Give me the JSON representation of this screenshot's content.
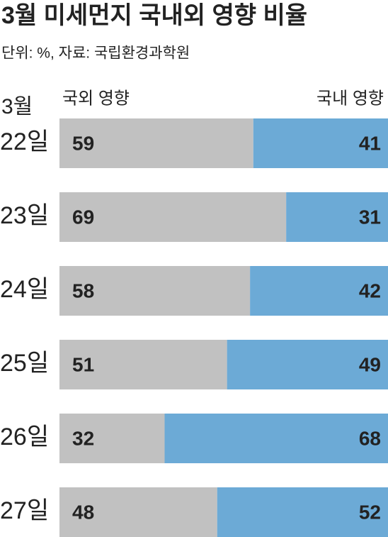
{
  "chart_data": {
    "type": "stacked-bar-horizontal",
    "title": "3월 미세먼지 국내외 영향 비율",
    "subtitle": "단위: %, 자료: 국립환경과학원",
    "month_label": "3월",
    "categories": [
      "22일",
      "23일",
      "24일",
      "25일",
      "26일",
      "27일"
    ],
    "series": [
      {
        "name": "국외 영향",
        "color": "#c1c1c1",
        "values": [
          59,
          69,
          58,
          51,
          32,
          48
        ]
      },
      {
        "name": "국내 영향",
        "color": "#6caad6",
        "values": [
          41,
          31,
          42,
          49,
          68,
          52
        ]
      }
    ],
    "xlim": [
      0,
      100
    ]
  }
}
